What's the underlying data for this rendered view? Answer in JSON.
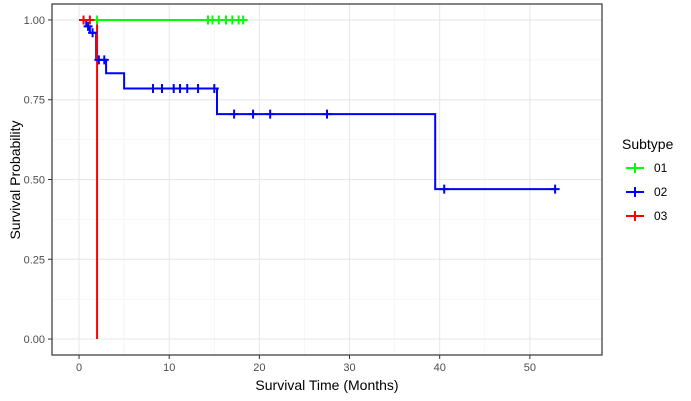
{
  "chart_data": {
    "type": "line",
    "subtype": "kaplan-meier step curve with censor marks",
    "xlabel": "Survival Time (Months)",
    "ylabel": "Survival Probability",
    "xlim": [
      -3,
      58
    ],
    "ylim": [
      -0.05,
      1.05
    ],
    "x_ticks": [
      0,
      10,
      20,
      30,
      40,
      50
    ],
    "y_ticks": [
      0.0,
      0.25,
      0.5,
      0.75,
      1.0
    ],
    "y_tick_labels": [
      "0.00",
      "0.25",
      "0.50",
      "0.75",
      "1.00"
    ],
    "x_tick_labels": [
      "0",
      "10",
      "20",
      "30",
      "40",
      "50"
    ],
    "grid": true,
    "background": "white panel with light gray grid and dark border",
    "legend": {
      "title": "Subtype",
      "placement": "right",
      "entries": [
        "01",
        "02",
        "03"
      ]
    },
    "series": [
      {
        "name": "01",
        "color": "#00ff00",
        "steps": [
          [
            0,
            1.0
          ],
          [
            18.2,
            1.0
          ]
        ],
        "censored": [
          [
            2.0,
            1.0
          ],
          [
            14.3,
            1.0
          ],
          [
            14.8,
            1.0
          ],
          [
            15.5,
            1.0
          ],
          [
            16.3,
            1.0
          ],
          [
            17.0,
            1.0
          ],
          [
            17.7,
            1.0
          ],
          [
            18.2,
            1.0
          ]
        ]
      },
      {
        "name": "02",
        "color": "#0000ff",
        "steps": [
          [
            0,
            1.0
          ],
          [
            0.8,
            0.98
          ],
          [
            1.2,
            0.96
          ],
          [
            1.9,
            0.875
          ],
          [
            3.0,
            0.833
          ],
          [
            5.0,
            0.785
          ],
          [
            15.3,
            0.705
          ],
          [
            39.5,
            0.47
          ],
          [
            52.8,
            0.47
          ]
        ],
        "censored": [
          [
            1.0,
            0.98
          ],
          [
            1.5,
            0.96
          ],
          [
            2.2,
            0.875
          ],
          [
            2.8,
            0.875
          ],
          [
            8.2,
            0.785
          ],
          [
            9.2,
            0.785
          ],
          [
            10.5,
            0.785
          ],
          [
            11.2,
            0.785
          ],
          [
            12.0,
            0.785
          ],
          [
            13.2,
            0.785
          ],
          [
            15.0,
            0.785
          ],
          [
            17.2,
            0.705
          ],
          [
            19.3,
            0.705
          ],
          [
            21.2,
            0.705
          ],
          [
            27.5,
            0.705
          ],
          [
            40.5,
            0.47
          ],
          [
            52.8,
            0.47
          ]
        ]
      },
      {
        "name": "03",
        "color": "#ff0000",
        "steps": [
          [
            0,
            1.0
          ],
          [
            2.0,
            1.0
          ],
          [
            2.0,
            0.0
          ]
        ],
        "censored": [
          [
            0.5,
            1.0
          ],
          [
            1.2,
            1.0
          ]
        ]
      }
    ]
  }
}
